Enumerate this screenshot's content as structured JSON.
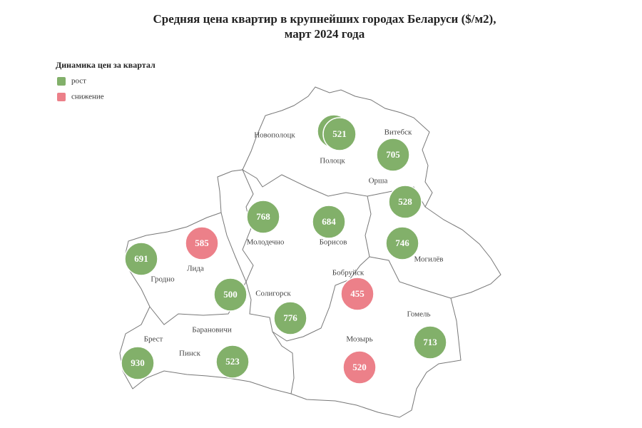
{
  "title": "Средняя цена квартир в крупнейших городах Беларуси ($/м2),",
  "subtitle": "март 2024 года",
  "legend": {
    "title": "Динамика цен за квартал",
    "items": [
      {
        "label": "рост",
        "color": "#82b06a"
      },
      {
        "label": "снижение",
        "color": "#ec8089"
      }
    ]
  },
  "cities": [
    {
      "name": "Новополоцк",
      "value": null,
      "color": "#82b06a"
    },
    {
      "name": "Полоцк",
      "value": 521,
      "color": "#82b06a"
    },
    {
      "name": "Витебск",
      "value": 705,
      "color": "#82b06a"
    },
    {
      "name": "Орша",
      "value": 528,
      "color": "#82b06a"
    },
    {
      "name": "Могилёв",
      "value": 746,
      "color": "#82b06a"
    },
    {
      "name": "Борисов",
      "value": 684,
      "color": "#82b06a"
    },
    {
      "name": "Молодечно",
      "value": 768,
      "color": "#82b06a"
    },
    {
      "name": "Лида",
      "value": 585,
      "color": "#ec8089"
    },
    {
      "name": "Гродно",
      "value": 691,
      "color": "#82b06a"
    },
    {
      "name": "Солигорск",
      "value": 776,
      "color": "#82b06a"
    },
    {
      "name": "Бобруйск",
      "value": 455,
      "color": "#ec8089"
    },
    {
      "name": "Гомель",
      "value": 713,
      "color": "#82b06a"
    },
    {
      "name": "Мозырь",
      "value": 520,
      "color": "#ec8089"
    },
    {
      "name": "Брест",
      "value": 930,
      "color": "#82b06a"
    },
    {
      "name": "Барановичи",
      "value": 500,
      "color": "#82b06a"
    },
    {
      "name": "Пинск",
      "value": 523,
      "color": "#82b06a"
    }
  ]
}
